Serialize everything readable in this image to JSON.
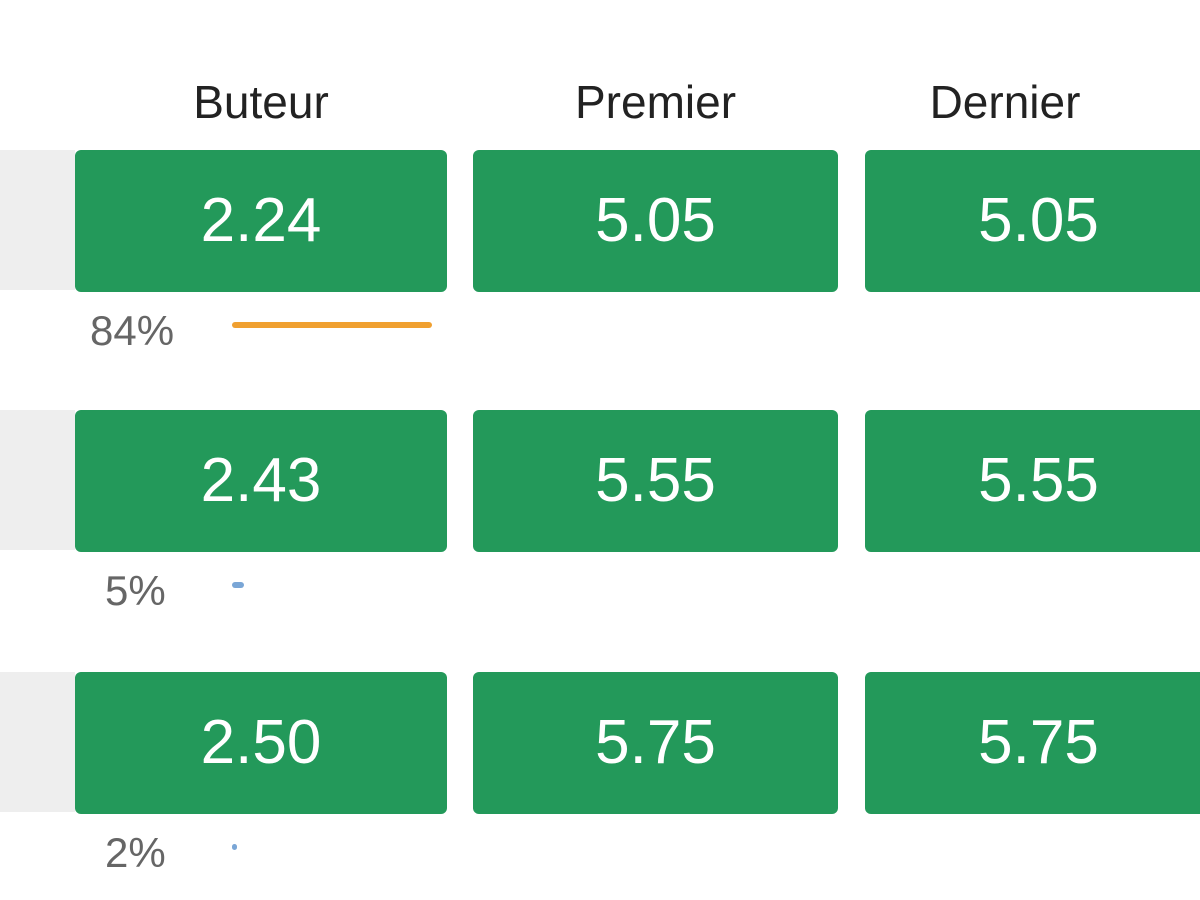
{
  "columns": [
    "Buteur",
    "Premier",
    "Dernier"
  ],
  "rows": [
    {
      "odds": [
        "2.24",
        "5.05",
        "5.05"
      ],
      "share": {
        "value": 84,
        "label": "84%"
      },
      "bar_color": "#f0a030"
    },
    {
      "odds": [
        "2.43",
        "5.55",
        "5.55"
      ],
      "share": {
        "value": 5,
        "label": "5%"
      },
      "bar_color": "#7aa6d6"
    },
    {
      "odds": [
        "2.50",
        "5.75",
        "5.75"
      ],
      "share": {
        "value": 2,
        "label": "2%"
      },
      "bar_color": "#7aa6d6"
    }
  ]
}
